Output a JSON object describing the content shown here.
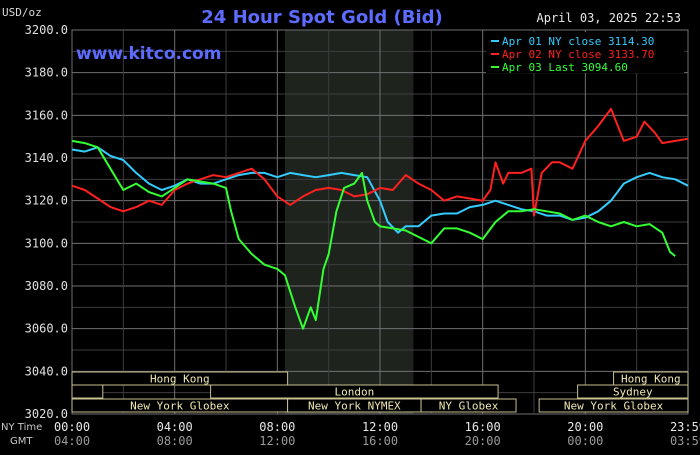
{
  "chart_data": {
    "type": "line",
    "title": "24 Hour Spot Gold (Bid)",
    "unit_label": "USD/oz",
    "date_label": "April 03, 2025 22:53",
    "watermark": "www.kitco.com",
    "ylim": [
      3020,
      3200
    ],
    "y_ticks": [
      "3200.0",
      "3180.0",
      "3160.0",
      "3140.0",
      "3120.0",
      "3100.0",
      "3080.0",
      "3060.0",
      "3040.0",
      "3020.0"
    ],
    "x_ticks": [
      {
        "h": 0,
        "ny": "00:00",
        "gmt": "04:00"
      },
      {
        "h": 4,
        "ny": "04:00",
        "gmt": "08:00"
      },
      {
        "h": 8,
        "ny": "08:00",
        "gmt": "12:00"
      },
      {
        "h": 12,
        "ny": "12:00",
        "gmt": "16:00"
      },
      {
        "h": 16,
        "ny": "16:00",
        "gmt": "20:00"
      },
      {
        "h": 20,
        "ny": "20:00",
        "gmt": "00:00"
      },
      {
        "h": 24,
        "ny": "23:59",
        "gmt": "03:59"
      }
    ],
    "ny_time_label": "NY Time",
    "gmt_label": "GMT",
    "grid": true,
    "legend_position": "top-right",
    "shaded_session": [
      8.3,
      13.3
    ],
    "series": [
      {
        "name": "Apr 01 NY close 3114.30",
        "color": "#33ccff",
        "points": [
          [
            0,
            3144
          ],
          [
            0.5,
            3143
          ],
          [
            1,
            3145
          ],
          [
            1.5,
            3141
          ],
          [
            2,
            3139
          ],
          [
            2.5,
            3133
          ],
          [
            3,
            3128
          ],
          [
            3.5,
            3125
          ],
          [
            4,
            3127
          ],
          [
            4.5,
            3130
          ],
          [
            5,
            3128
          ],
          [
            5.5,
            3128
          ],
          [
            6,
            3130
          ],
          [
            6.5,
            3132
          ],
          [
            7,
            3133
          ],
          [
            7.5,
            3133
          ],
          [
            8,
            3131
          ],
          [
            8.5,
            3133
          ],
          [
            9,
            3132
          ],
          [
            9.5,
            3131
          ],
          [
            10,
            3132
          ],
          [
            10.5,
            3133
          ],
          [
            11,
            3132
          ],
          [
            11.5,
            3131
          ],
          [
            12,
            3120
          ],
          [
            12.3,
            3110
          ],
          [
            12.7,
            3105
          ],
          [
            13,
            3108
          ],
          [
            13.5,
            3108
          ],
          [
            14,
            3113
          ],
          [
            14.5,
            3114
          ],
          [
            15,
            3114
          ],
          [
            15.5,
            3117
          ],
          [
            16,
            3118
          ],
          [
            16.5,
            3120
          ],
          [
            17,
            3118
          ],
          [
            17.5,
            3116
          ],
          [
            18,
            3115
          ],
          [
            18.5,
            3113
          ],
          [
            19,
            3113
          ],
          [
            19.5,
            3111
          ],
          [
            20,
            3112
          ],
          [
            20.5,
            3115
          ],
          [
            21,
            3120
          ],
          [
            21.5,
            3128
          ],
          [
            22,
            3131
          ],
          [
            22.5,
            3133
          ],
          [
            23,
            3131
          ],
          [
            23.5,
            3130
          ],
          [
            24,
            3127
          ]
        ]
      },
      {
        "name": "Apr 02 NY close 3133.70",
        "color": "#ff2020",
        "points": [
          [
            0,
            3127
          ],
          [
            0.5,
            3125
          ],
          [
            1,
            3121
          ],
          [
            1.5,
            3117
          ],
          [
            2,
            3115
          ],
          [
            2.5,
            3117
          ],
          [
            3,
            3120
          ],
          [
            3.5,
            3118
          ],
          [
            4,
            3125
          ],
          [
            4.5,
            3128
          ],
          [
            5,
            3130
          ],
          [
            5.5,
            3132
          ],
          [
            6,
            3131
          ],
          [
            6.5,
            3133
          ],
          [
            7,
            3135
          ],
          [
            7.5,
            3130
          ],
          [
            8,
            3122
          ],
          [
            8.5,
            3118
          ],
          [
            9,
            3122
          ],
          [
            9.5,
            3125
          ],
          [
            10,
            3126
          ],
          [
            10.5,
            3125
          ],
          [
            11,
            3122
          ],
          [
            11.5,
            3123
          ],
          [
            12,
            3126
          ],
          [
            12.5,
            3125
          ],
          [
            13,
            3132
          ],
          [
            13.5,
            3128
          ],
          [
            14,
            3125
          ],
          [
            14.5,
            3120
          ],
          [
            15,
            3122
          ],
          [
            15.5,
            3121
          ],
          [
            16,
            3120
          ],
          [
            16.3,
            3125
          ],
          [
            16.5,
            3138
          ],
          [
            16.8,
            3128
          ],
          [
            17,
            3133
          ],
          [
            17.5,
            3133
          ],
          [
            17.9,
            3135
          ],
          [
            18,
            3113
          ],
          [
            18.3,
            3133
          ],
          [
            18.7,
            3138
          ],
          [
            19,
            3138
          ],
          [
            19.5,
            3135
          ],
          [
            20,
            3148
          ],
          [
            20.5,
            3155
          ],
          [
            21,
            3163
          ],
          [
            21.5,
            3148
          ],
          [
            22,
            3150
          ],
          [
            22.3,
            3157
          ],
          [
            22.7,
            3152
          ],
          [
            23,
            3147
          ],
          [
            23.5,
            3148
          ],
          [
            24,
            3149
          ]
        ]
      },
      {
        "name": "Apr 03 Last 3094.60",
        "color": "#33ff33",
        "points": [
          [
            0,
            3148
          ],
          [
            0.5,
            3147
          ],
          [
            1,
            3145
          ],
          [
            1.5,
            3135
          ],
          [
            2,
            3125
          ],
          [
            2.5,
            3128
          ],
          [
            3,
            3124
          ],
          [
            3.5,
            3122
          ],
          [
            4,
            3126
          ],
          [
            4.5,
            3130
          ],
          [
            5,
            3129
          ],
          [
            5.5,
            3128
          ],
          [
            6,
            3126
          ],
          [
            6.2,
            3115
          ],
          [
            6.5,
            3102
          ],
          [
            7,
            3095
          ],
          [
            7.5,
            3090
          ],
          [
            8,
            3088
          ],
          [
            8.3,
            3085
          ],
          [
            8.7,
            3070
          ],
          [
            9,
            3060
          ],
          [
            9.3,
            3070
          ],
          [
            9.5,
            3064
          ],
          [
            9.8,
            3088
          ],
          [
            10,
            3095
          ],
          [
            10.3,
            3115
          ],
          [
            10.6,
            3126
          ],
          [
            11,
            3128
          ],
          [
            11.3,
            3133
          ],
          [
            11.5,
            3120
          ],
          [
            11.8,
            3110
          ],
          [
            12,
            3108
          ],
          [
            12.5,
            3107
          ],
          [
            13,
            3106
          ],
          [
            13.5,
            3103
          ],
          [
            14,
            3100
          ],
          [
            14.5,
            3107
          ],
          [
            15,
            3107
          ],
          [
            15.5,
            3105
          ],
          [
            16,
            3102
          ],
          [
            16.5,
            3110
          ],
          [
            17,
            3115
          ],
          [
            17.5,
            3115
          ],
          [
            18,
            3116
          ],
          [
            18.5,
            3115
          ],
          [
            19,
            3114
          ],
          [
            19.5,
            3111
          ],
          [
            20,
            3113
          ],
          [
            20.5,
            3110
          ],
          [
            21,
            3108
          ],
          [
            21.5,
            3110
          ],
          [
            22,
            3108
          ],
          [
            22.5,
            3109
          ],
          [
            23,
            3105
          ],
          [
            23.3,
            3096
          ],
          [
            23.5,
            3094
          ]
        ]
      }
    ],
    "sessions": {
      "row1": [
        {
          "label": "Hong Kong",
          "start": 0,
          "end": 8.4
        },
        {
          "label": "Hong Kong",
          "start": 21.1,
          "end": 24
        }
      ],
      "row2": [
        {
          "label": "",
          "start": 0,
          "end": 1.2
        },
        {
          "label": "London",
          "start": 5.4,
          "end": 16.6
        },
        {
          "label": "Sydney",
          "start": 19.7,
          "end": 24
        }
      ],
      "row3": [
        {
          "label": "New York Globex",
          "start": 0,
          "end": 8.4
        },
        {
          "label": "New York NYMEX",
          "start": 8.4,
          "end": 13.6
        },
        {
          "label": "NY Globex",
          "start": 13.6,
          "end": 17.3
        },
        {
          "label": "New York Globex",
          "start": 18.2,
          "end": 24
        }
      ]
    }
  }
}
